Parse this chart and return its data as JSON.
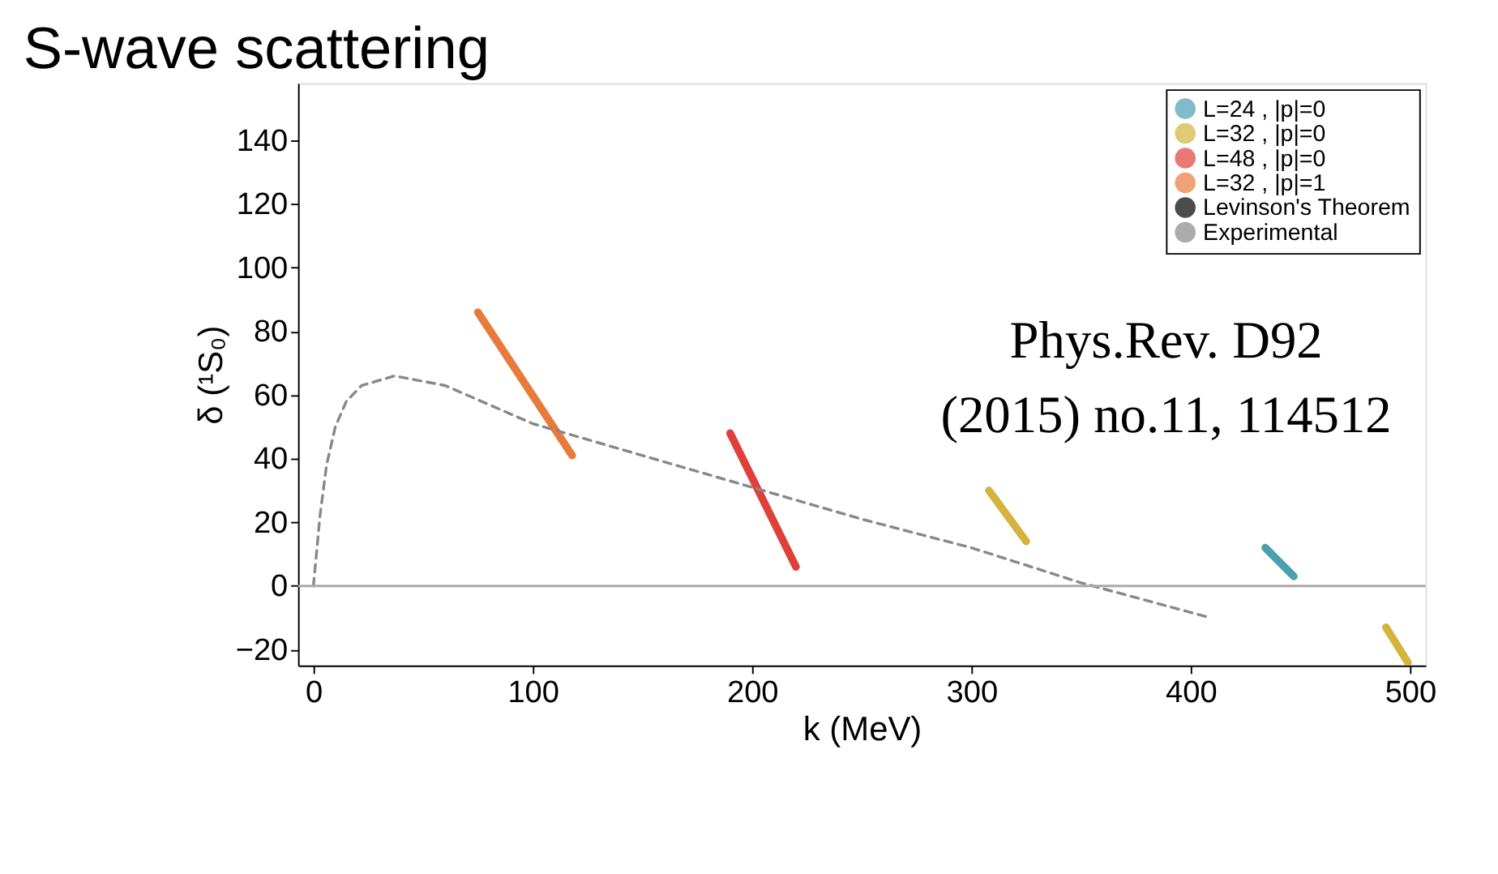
{
  "chart_data": {
    "type": "line",
    "title": "S-wave scattering",
    "xlabel": "k (MeV)",
    "ylabel": "δ (¹S₀)",
    "xlim": [
      -7,
      507
    ],
    "xticks": [
      0,
      100,
      200,
      300,
      400,
      500
    ],
    "ylim": [
      -25,
      158
    ],
    "yticks": [
      -20,
      0,
      20,
      40,
      60,
      80,
      100,
      120,
      140
    ],
    "series": [
      {
        "name": "L=24 , |p|=0",
        "color": "#4aa0b0",
        "x": [
          434,
          447
        ],
        "values": [
          12,
          3
        ]
      },
      {
        "name": "L=32 , |p|=0",
        "color": "#d4b43c",
        "x": [
          308,
          325
        ],
        "values": [
          30,
          14
        ]
      },
      {
        "name": "L=48 , |p|=0",
        "color": "#e0403a",
        "x": [
          190,
          220
        ],
        "values": [
          48,
          6
        ]
      },
      {
        "name": "L=32 , |p|=1",
        "color": "#e87a3c",
        "x": [
          75,
          118
        ],
        "values": [
          86,
          41
        ]
      },
      {
        "name": "Levinson's Theorem",
        "color": "#000000",
        "type": "scatter"
      },
      {
        "name": "Experimental",
        "color": "#888888",
        "line_style": "dashed",
        "x": [
          0,
          3,
          6,
          10,
          15,
          22,
          37,
          60,
          100,
          150,
          200,
          250,
          300,
          350,
          409
        ],
        "values": [
          0,
          22,
          38,
          50,
          58,
          63,
          66,
          63,
          51,
          41,
          31,
          21,
          12,
          1,
          -10
        ]
      },
      {
        "color": "#d4b43c",
        "x": [
          489,
          499
        ],
        "values": [
          -13,
          -24
        ]
      }
    ],
    "ref_lines": [
      {
        "axis": "y",
        "value": 0,
        "color": "#aaaaaa"
      }
    ],
    "annotations": [
      "Phys.Rev. D92\n(2015) no.11, 114512"
    ],
    "legend": "top right",
    "grid": false
  }
}
